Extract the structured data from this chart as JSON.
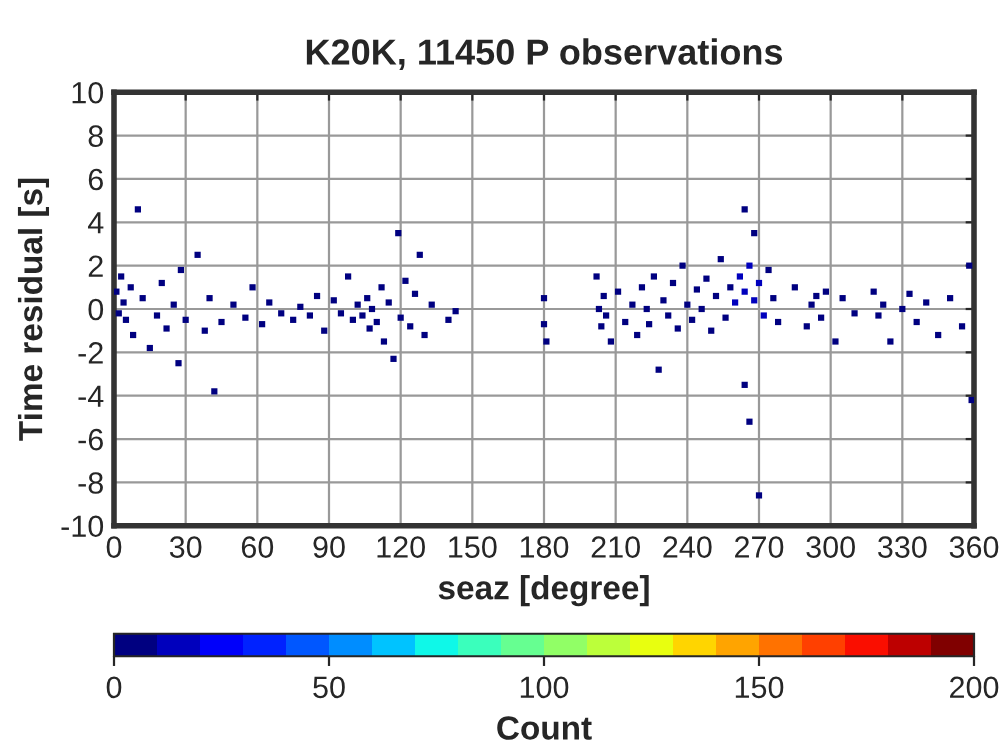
{
  "chart_data": {
    "type": "scatter",
    "title": "K20K, 11450 P observations",
    "xlabel": "seaz [degree]",
    "ylabel": "Time residual [s]",
    "clabel": "Count",
    "xlim": [
      0,
      360
    ],
    "xticks": [
      0,
      30,
      60,
      90,
      120,
      150,
      180,
      210,
      240,
      270,
      300,
      330,
      360
    ],
    "ylim": [
      -10,
      10
    ],
    "yticks": [
      -10,
      -8,
      -6,
      -4,
      -2,
      0,
      2,
      4,
      6,
      8,
      10
    ],
    "clim": [
      0,
      200
    ],
    "cticks": [
      0,
      50,
      100,
      150,
      200
    ],
    "grid": true,
    "marker": "square",
    "x": [
      1,
      2,
      3,
      4,
      5,
      7,
      8,
      10,
      12,
      15,
      18,
      20,
      22,
      25,
      27,
      28,
      30,
      35,
      38,
      40,
      42,
      45,
      50,
      55,
      58,
      62,
      65,
      70,
      75,
      78,
      82,
      85,
      88,
      92,
      95,
      98,
      100,
      102,
      104,
      106,
      107,
      108,
      110,
      112,
      113,
      115,
      117,
      119,
      120,
      122,
      124,
      126,
      128,
      130,
      133,
      140,
      143,
      180,
      180,
      181,
      202,
      203,
      204,
      205,
      206,
      208,
      211,
      214,
      217,
      219,
      221,
      223,
      224,
      226,
      228,
      230,
      232,
      234,
      236,
      238,
      240,
      242,
      244,
      246,
      248,
      250,
      252,
      254,
      256,
      258,
      260,
      262,
      264,
      266,
      268,
      270,
      272,
      274,
      276,
      264,
      266,
      264,
      270,
      268,
      278,
      285,
      290,
      292,
      294,
      296,
      298,
      302,
      305,
      310,
      318,
      320,
      322,
      325,
      330,
      333,
      336,
      340,
      345,
      350,
      355,
      358,
      359
    ],
    "values": [
      0.8,
      -0.2,
      1.5,
      0.3,
      -0.5,
      1.0,
      -1.2,
      4.6,
      0.5,
      -1.8,
      -0.3,
      1.2,
      -0.9,
      0.2,
      -2.5,
      1.8,
      -0.5,
      2.5,
      -1.0,
      0.5,
      -3.8,
      -0.6,
      0.2,
      -0.4,
      1.0,
      -0.7,
      0.3,
      -0.2,
      -0.5,
      0.1,
      -0.3,
      0.6,
      -1.0,
      0.4,
      -0.2,
      1.5,
      -0.5,
      0.2,
      -0.3,
      0.5,
      -0.9,
      0.0,
      -0.6,
      1.0,
      -1.5,
      0.3,
      -2.3,
      3.5,
      -0.4,
      1.3,
      -0.8,
      0.7,
      2.5,
      -1.2,
      0.2,
      -0.5,
      -0.1,
      0.5,
      -0.7,
      -1.5,
      1.5,
      0.0,
      -0.8,
      0.6,
      -0.3,
      -1.5,
      0.8,
      -0.6,
      0.2,
      -1.2,
      1.0,
      0.0,
      -0.7,
      1.5,
      -2.8,
      0.4,
      -0.3,
      1.2,
      -0.9,
      2.0,
      0.2,
      -0.5,
      0.9,
      0.0,
      1.4,
      -1.0,
      0.6,
      2.3,
      -0.4,
      1.0,
      0.3,
      1.5,
      0.8,
      2.0,
      0.4,
      1.2,
      -0.3,
      1.8,
      0.5,
      -3.5,
      -5.2,
      4.6,
      -8.6,
      3.5,
      -0.6,
      1.0,
      -0.8,
      0.2,
      0.6,
      -0.4,
      0.8,
      -1.5,
      0.5,
      -0.2,
      0.8,
      -0.3,
      0.2,
      -1.5,
      0.0,
      0.7,
      -0.6,
      0.3,
      -1.2,
      0.5,
      -0.8,
      2.0,
      -4.2
    ],
    "cvalues": [
      3,
      2,
      1,
      4,
      2,
      3,
      1,
      1,
      2,
      1,
      1,
      1,
      1,
      1,
      1,
      1,
      1,
      1,
      1,
      1,
      1,
      1,
      1,
      1,
      1,
      1,
      1,
      1,
      1,
      1,
      1,
      1,
      1,
      1,
      2,
      1,
      3,
      5,
      8,
      6,
      5,
      9,
      4,
      2,
      2,
      2,
      1,
      1,
      2,
      1,
      1,
      1,
      1,
      1,
      1,
      1,
      1,
      1,
      1,
      1,
      1,
      5,
      6,
      4,
      5,
      2,
      1,
      1,
      2,
      1,
      2,
      3,
      2,
      1,
      1,
      4,
      5,
      4,
      3,
      2,
      5,
      6,
      6,
      7,
      5,
      4,
      6,
      3,
      8,
      9,
      11,
      12,
      14,
      12,
      15,
      14,
      11,
      9,
      6,
      1,
      1,
      1,
      1,
      2,
      2,
      1,
      1,
      2,
      2,
      3,
      1,
      1,
      1,
      1,
      2,
      4,
      3,
      1,
      1,
      1,
      1,
      1,
      1,
      1,
      1,
      1,
      1
    ]
  }
}
